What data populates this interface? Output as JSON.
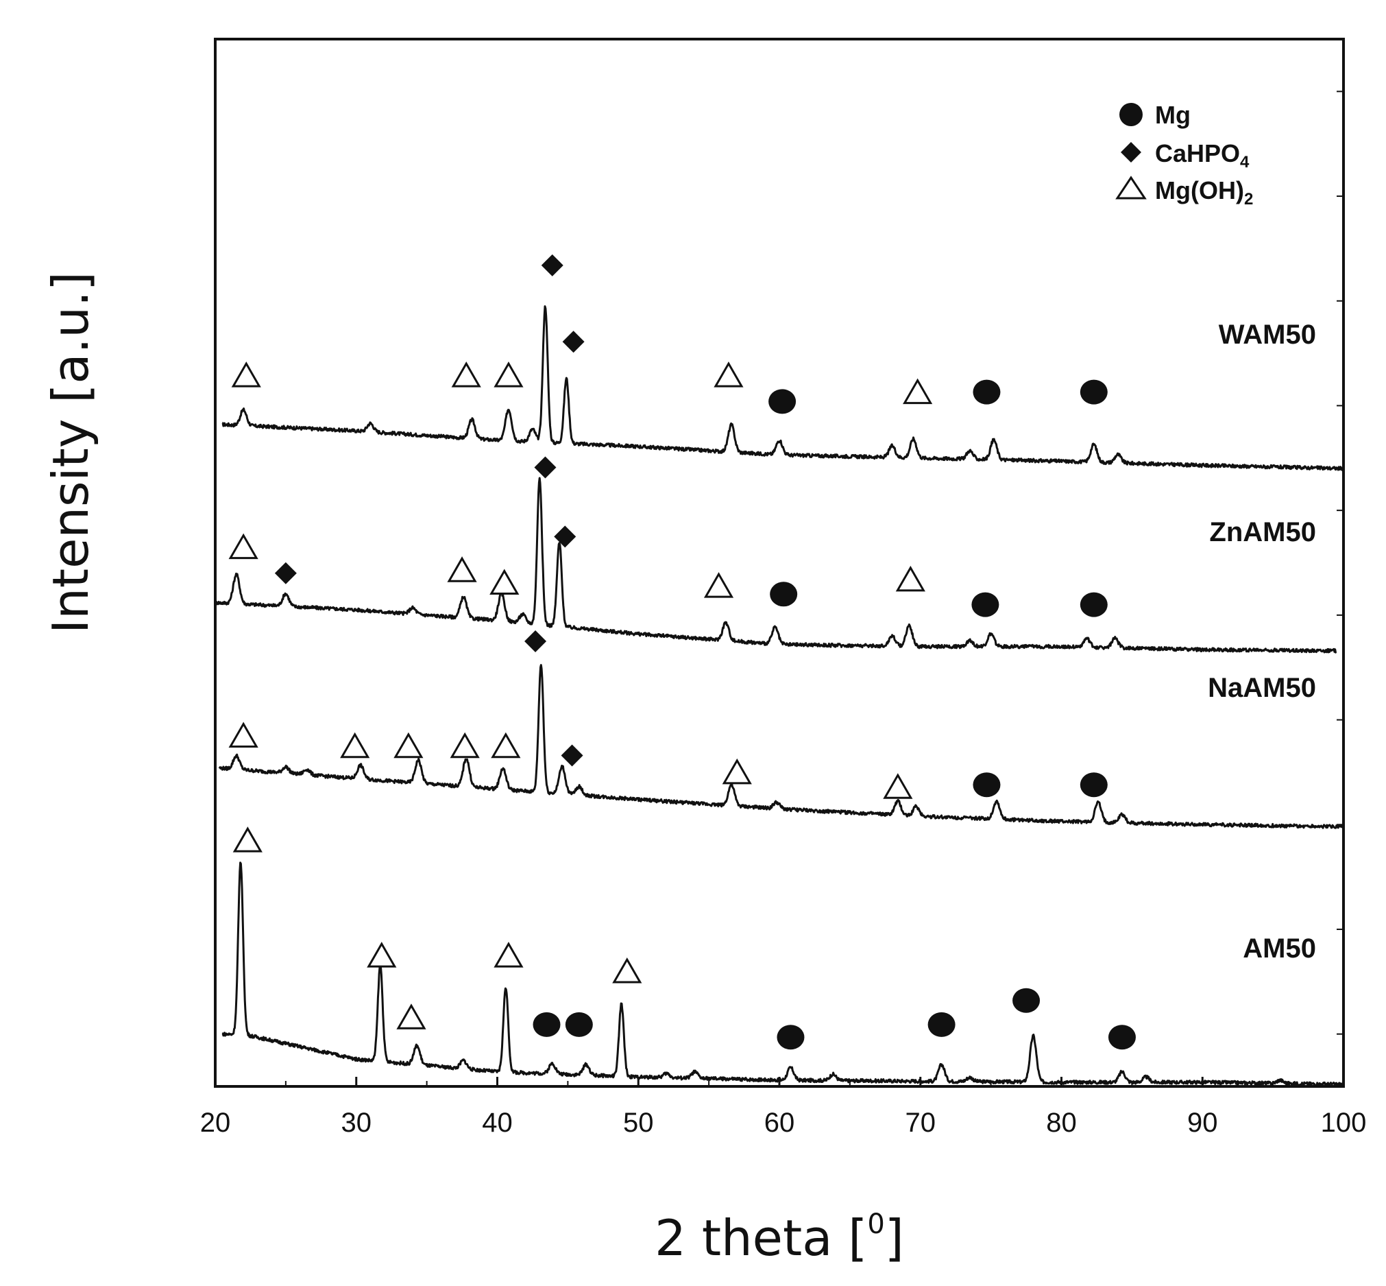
{
  "chart_data": {
    "type": "line",
    "xlabel": "2 theta [",
    "xlabel_superscript": "0",
    "xlabel_end": "]",
    "ylabel": "Intensity [a.u.]",
    "xlim": [
      20,
      100
    ],
    "ylim": [
      0,
      100
    ],
    "xticks": [
      20,
      30,
      40,
      50,
      60,
      70,
      80,
      90,
      100
    ],
    "legend": {
      "position": "top-right",
      "entries": [
        {
          "marker": "circle",
          "label": "Mg"
        },
        {
          "marker": "diamond",
          "label": "CaHPO",
          "subscript": "4"
        },
        {
          "marker": "triangle",
          "label": "Mg(OH)",
          "subscript": "2"
        }
      ]
    },
    "series": [
      {
        "name": "WAM50",
        "x_end": 100,
        "baseline": [
          [
            20.5,
            63.2
          ],
          [
            30,
            62.6
          ],
          [
            40,
            61.7
          ],
          [
            50,
            61.1
          ],
          [
            60,
            60.3
          ],
          [
            70,
            60.0
          ],
          [
            80,
            59.7
          ],
          [
            90,
            59.3
          ],
          [
            100,
            59.0
          ]
        ],
        "peaks": [
          [
            22.0,
            1.5
          ],
          [
            31.0,
            0.8
          ],
          [
            38.2,
            1.8
          ],
          [
            40.8,
            3.0
          ],
          [
            42.5,
            1.2
          ],
          [
            43.4,
            13.0
          ],
          [
            44.9,
            6.2
          ],
          [
            56.6,
            2.6
          ],
          [
            60.0,
            1.4
          ],
          [
            68.0,
            1.1
          ],
          [
            69.5,
            1.8
          ],
          [
            73.5,
            0.8
          ],
          [
            75.2,
            1.9
          ],
          [
            82.3,
            1.7
          ],
          [
            84.0,
            0.8
          ]
        ],
        "markers": [
          {
            "type": "triangle",
            "x": 22.2,
            "y": 67.9
          },
          {
            "type": "triangle",
            "x": 37.8,
            "y": 67.9
          },
          {
            "type": "triangle",
            "x": 40.8,
            "y": 67.9
          },
          {
            "type": "diamond",
            "x": 43.9,
            "y": 78.4
          },
          {
            "type": "diamond",
            "x": 45.4,
            "y": 71.1
          },
          {
            "type": "triangle",
            "x": 56.4,
            "y": 67.9
          },
          {
            "type": "circle",
            "x": 60.2,
            "y": 65.4
          },
          {
            "type": "triangle",
            "x": 69.8,
            "y": 66.3
          },
          {
            "type": "circle",
            "x": 74.7,
            "y": 66.3
          },
          {
            "type": "circle",
            "x": 82.3,
            "y": 66.3
          }
        ]
      },
      {
        "name": "ZnAM50",
        "x_end": 99.5,
        "baseline": [
          [
            20,
            46.2
          ],
          [
            30,
            45.5
          ],
          [
            40,
            44.5
          ],
          [
            50,
            43.2
          ],
          [
            60,
            42.2
          ],
          [
            70,
            42.0
          ],
          [
            80,
            42.0
          ],
          [
            90,
            41.7
          ],
          [
            99.5,
            41.6
          ]
        ],
        "peaks": [
          [
            21.5,
            2.8
          ],
          [
            25.0,
            1.2
          ],
          [
            34.0,
            0.6
          ],
          [
            37.6,
            2.0
          ],
          [
            40.3,
            2.6
          ],
          [
            41.8,
            0.8
          ],
          [
            43.0,
            14.0
          ],
          [
            44.4,
            8.0
          ],
          [
            56.2,
            1.7
          ],
          [
            59.7,
            1.6
          ],
          [
            68.0,
            1.0
          ],
          [
            69.2,
            2.0
          ],
          [
            73.5,
            0.6
          ],
          [
            75.0,
            1.2
          ],
          [
            81.8,
            0.8
          ],
          [
            83.8,
            0.9
          ]
        ],
        "markers": [
          {
            "type": "triangle",
            "x": 22.0,
            "y": 51.5
          },
          {
            "type": "diamond",
            "x": 25.0,
            "y": 49.0
          },
          {
            "type": "triangle",
            "x": 37.5,
            "y": 49.3
          },
          {
            "type": "triangle",
            "x": 40.5,
            "y": 48.1
          },
          {
            "type": "diamond",
            "x": 43.4,
            "y": 59.1
          },
          {
            "type": "diamond",
            "x": 44.8,
            "y": 52.5
          },
          {
            "type": "triangle",
            "x": 55.7,
            "y": 47.8
          },
          {
            "type": "circle",
            "x": 60.3,
            "y": 47.0
          },
          {
            "type": "triangle",
            "x": 69.3,
            "y": 48.4
          },
          {
            "type": "circle",
            "x": 74.6,
            "y": 46.0
          },
          {
            "type": "circle",
            "x": 82.3,
            "y": 46.0
          }
        ]
      },
      {
        "name": "NaAM50",
        "x_end": 100,
        "baseline": [
          [
            20.3,
            30.4
          ],
          [
            30,
            29.4
          ],
          [
            40,
            28.4
          ],
          [
            50,
            27.4
          ],
          [
            60,
            26.5
          ],
          [
            70,
            25.8
          ],
          [
            80,
            25.3
          ],
          [
            90,
            25.0
          ],
          [
            100,
            24.8
          ]
        ],
        "peaks": [
          [
            21.5,
            1.3
          ],
          [
            25.0,
            0.6
          ],
          [
            26.5,
            0.5
          ],
          [
            30.3,
            1.3
          ],
          [
            34.4,
            2.2
          ],
          [
            37.8,
            2.7
          ],
          [
            40.4,
            2.0
          ],
          [
            43.1,
            12.2
          ],
          [
            44.6,
            2.6
          ],
          [
            45.8,
            0.8
          ],
          [
            56.6,
            2.0
          ],
          [
            59.8,
            0.6
          ],
          [
            68.4,
            1.3
          ],
          [
            69.7,
            0.9
          ],
          [
            75.4,
            1.7
          ],
          [
            82.6,
            1.9
          ],
          [
            84.3,
            0.8
          ]
        ],
        "markers": [
          {
            "type": "triangle",
            "x": 22.0,
            "y": 33.5
          },
          {
            "type": "triangle",
            "x": 29.9,
            "y": 32.5
          },
          {
            "type": "triangle",
            "x": 33.7,
            "y": 32.5
          },
          {
            "type": "triangle",
            "x": 37.7,
            "y": 32.5
          },
          {
            "type": "triangle",
            "x": 40.6,
            "y": 32.5
          },
          {
            "type": "diamond",
            "x": 42.7,
            "y": 42.5
          },
          {
            "type": "diamond",
            "x": 45.3,
            "y": 31.6
          },
          {
            "type": "triangle",
            "x": 57.0,
            "y": 30.0
          },
          {
            "type": "triangle",
            "x": 68.4,
            "y": 28.6
          },
          {
            "type": "circle",
            "x": 74.7,
            "y": 28.8
          },
          {
            "type": "circle",
            "x": 82.3,
            "y": 28.8
          }
        ]
      },
      {
        "name": "AM50",
        "x_end": 100,
        "baseline": [
          [
            20.5,
            5.0
          ],
          [
            22.3,
            4.9
          ],
          [
            30,
            2.6
          ],
          [
            40,
            1.4
          ],
          [
            50,
            0.9
          ],
          [
            60,
            0.6
          ],
          [
            70,
            0.5
          ],
          [
            80,
            0.4
          ],
          [
            90,
            0.4
          ],
          [
            100,
            0.2
          ]
        ],
        "peaks": [
          [
            21.8,
            16.5
          ],
          [
            31.7,
            9.2
          ],
          [
            34.3,
            1.8
          ],
          [
            37.6,
            0.8
          ],
          [
            40.6,
            8.1
          ],
          [
            43.9,
            1.0
          ],
          [
            46.3,
            1.0
          ],
          [
            48.8,
            6.9
          ],
          [
            52.0,
            0.4
          ],
          [
            54.0,
            0.6
          ],
          [
            60.8,
            1.2
          ],
          [
            63.8,
            0.6
          ],
          [
            71.5,
            1.6
          ],
          [
            73.5,
            0.4
          ],
          [
            78.0,
            4.4
          ],
          [
            84.3,
            1.0
          ],
          [
            86.0,
            0.5
          ],
          [
            95.5,
            0.3
          ]
        ],
        "markers": [
          {
            "type": "triangle",
            "x": 22.3,
            "y": 23.5
          },
          {
            "type": "triangle",
            "x": 31.8,
            "y": 12.5
          },
          {
            "type": "triangle",
            "x": 33.9,
            "y": 6.6
          },
          {
            "type": "triangle",
            "x": 40.8,
            "y": 12.5
          },
          {
            "type": "circle",
            "x": 43.5,
            "y": 5.9
          },
          {
            "type": "circle",
            "x": 45.8,
            "y": 5.9
          },
          {
            "type": "triangle",
            "x": 49.2,
            "y": 11.0
          },
          {
            "type": "circle",
            "x": 60.8,
            "y": 4.7
          },
          {
            "type": "circle",
            "x": 71.5,
            "y": 5.9
          },
          {
            "type": "circle",
            "x": 77.5,
            "y": 8.2
          },
          {
            "type": "circle",
            "x": 84.3,
            "y": 4.7
          }
        ]
      }
    ]
  },
  "series_labels": {
    "wam50": "WAM50",
    "znam50": "ZnAM50",
    "naam50": "NaAM50",
    "am50": "AM50"
  },
  "legend_labels": {
    "mg": "Mg",
    "cahpo": "CaHPO",
    "cahpo_sub": "4",
    "mgoh": "Mg(OH)",
    "mgoh_sub": "2"
  },
  "axis_titles": {
    "x_main": "2 theta [",
    "x_sup": "0",
    "x_end": "]",
    "y": "Intensity [a.u.]"
  },
  "colors": {
    "line": "#111111",
    "background": "#ffffff"
  }
}
